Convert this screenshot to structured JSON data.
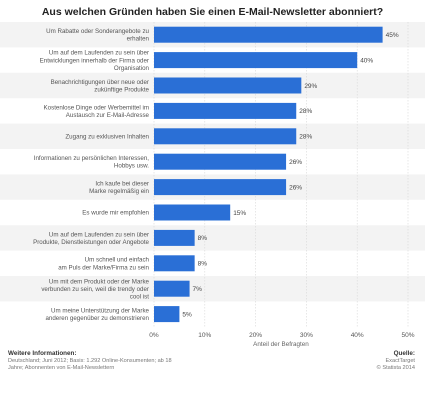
{
  "chart_data": {
    "type": "bar",
    "orientation": "horizontal",
    "title": "Aus welchen Gründen haben Sie einen E-Mail-Newsletter abonniert?",
    "xlabel": "Anteil der Befragten",
    "xlim": [
      0,
      50
    ],
    "xticks": [
      "0%",
      "10%",
      "20%",
      "30%",
      "40%",
      "50%"
    ],
    "grid": true,
    "bar_color": "#2a6fd6",
    "categories": [
      [
        "Um Rabatte oder Sonderangebote zu",
        "erhalten"
      ],
      [
        "Um auf dem Laufenden zu sein über",
        "Entwicklungen innerhalb der Firma oder",
        "Organisation"
      ],
      [
        "Benachrichtigungen über neue oder",
        "zukünftige Produkte"
      ],
      [
        "Kostenlose Dinge oder Werbemittel im",
        "Austausch zur E-Mail-Adresse"
      ],
      [
        "Zugang zu exklusiven Inhalten"
      ],
      [
        "Informationen zu persönlichen Interessen,",
        "Hobbys usw."
      ],
      [
        "Ich kaufe bei dieser",
        "Marke regelmäßig ein"
      ],
      [
        "Es wurde mir empfohlen"
      ],
      [
        "Um auf dem Laufenden zu sein über",
        "Produkte, Dienstleistungen oder Angebote"
      ],
      [
        "Um schnell und einfach",
        "am Puls der Marke/Firma zu sein"
      ],
      [
        "Um mit dem Produkt oder der Marke",
        "verbunden zu sein, weil die trendy oder",
        "cool ist"
      ],
      [
        "Um meine Unterstützung der Marke",
        "anderen gegenüber zu demonstrieren"
      ]
    ],
    "values": [
      45,
      40,
      29,
      28,
      28,
      26,
      26,
      15,
      8,
      8,
      7,
      5
    ],
    "value_labels": [
      "45%",
      "40%",
      "29%",
      "28%",
      "28%",
      "26%",
      "26%",
      "15%",
      "8%",
      "8%",
      "7%",
      "5%"
    ]
  },
  "footer": {
    "info_heading": "Weitere Informationen:",
    "info_lines": [
      "Deutschland; Juni 2012; Basis: 1.292 Online-Konsumenten; ab 18",
      "Jahre; Abonnenten von E-Mail-Newslettern"
    ],
    "source_heading": "Quelle:",
    "source_lines": [
      "ExactTarget",
      "© Statista 2014"
    ]
  }
}
